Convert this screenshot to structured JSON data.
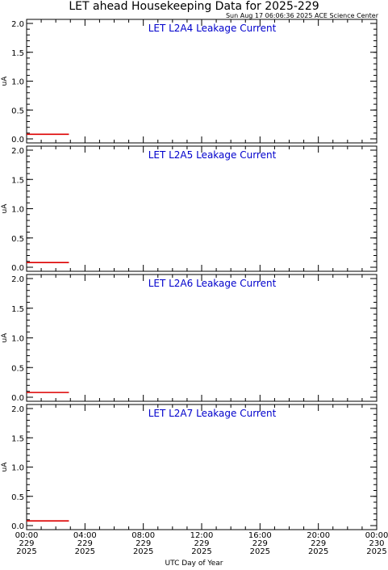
{
  "header": {
    "title": "LET ahead Housekeeping Data for 2025-229",
    "timestamp": "Sun Aug 17 06:06:36 2025 ACE Science Center"
  },
  "colors": {
    "series": "#dd0000",
    "panel_title": "#0000cc",
    "axis": "#000000"
  },
  "chart_data": [
    {
      "type": "line",
      "title": "LET L2A4 Leakage Current",
      "ylabel": "uA",
      "ylim": [
        0,
        2.0
      ],
      "yticks": [
        "0.0",
        "0.5",
        "1.0",
        "1.5",
        "2.0"
      ],
      "x_range_hours": [
        0,
        24
      ],
      "series": [
        {
          "x_hours": [
            0,
            2.9
          ],
          "values": [
            0.08,
            0.08
          ]
        }
      ]
    },
    {
      "type": "line",
      "title": "LET L2A5 Leakage Current",
      "ylabel": "uA",
      "ylim": [
        0,
        2.0
      ],
      "yticks": [
        "0.0",
        "0.5",
        "1.0",
        "1.5",
        "2.0"
      ],
      "x_range_hours": [
        0,
        24
      ],
      "series": [
        {
          "x_hours": [
            0,
            2.9
          ],
          "values": [
            0.08,
            0.08
          ]
        }
      ]
    },
    {
      "type": "line",
      "title": "LET L2A6 Leakage Current",
      "ylabel": "uA",
      "ylim": [
        0,
        2.0
      ],
      "yticks": [
        "0.0",
        "0.5",
        "1.0",
        "1.5",
        "2.0"
      ],
      "x_range_hours": [
        0,
        24
      ],
      "series": [
        {
          "x_hours": [
            0,
            2.9
          ],
          "values": [
            0.08,
            0.08
          ]
        }
      ]
    },
    {
      "type": "line",
      "title": "LET L2A7 Leakage Current",
      "ylabel": "uA",
      "ylim": [
        0,
        2.0
      ],
      "yticks": [
        "0.0",
        "0.5",
        "1.0",
        "1.5",
        "2.0"
      ],
      "x_range_hours": [
        0,
        24
      ],
      "series": [
        {
          "x_hours": [
            0,
            2.9
          ],
          "values": [
            0.08,
            0.08
          ]
        }
      ]
    }
  ],
  "x_axis": {
    "label": "UTC Day of Year",
    "ticks": [
      {
        "hours": 0,
        "time": "00:00",
        "doy": "229",
        "year": "2025"
      },
      {
        "hours": 4,
        "time": "04:00",
        "doy": "229",
        "year": "2025"
      },
      {
        "hours": 8,
        "time": "08:00",
        "doy": "229",
        "year": "2025"
      },
      {
        "hours": 12,
        "time": "12:00",
        "doy": "229",
        "year": "2025"
      },
      {
        "hours": 16,
        "time": "16:00",
        "doy": "229",
        "year": "2025"
      },
      {
        "hours": 20,
        "time": "20:00",
        "doy": "229",
        "year": "2025"
      },
      {
        "hours": 24,
        "time": "00:00",
        "doy": "230",
        "year": "2025"
      }
    ]
  }
}
